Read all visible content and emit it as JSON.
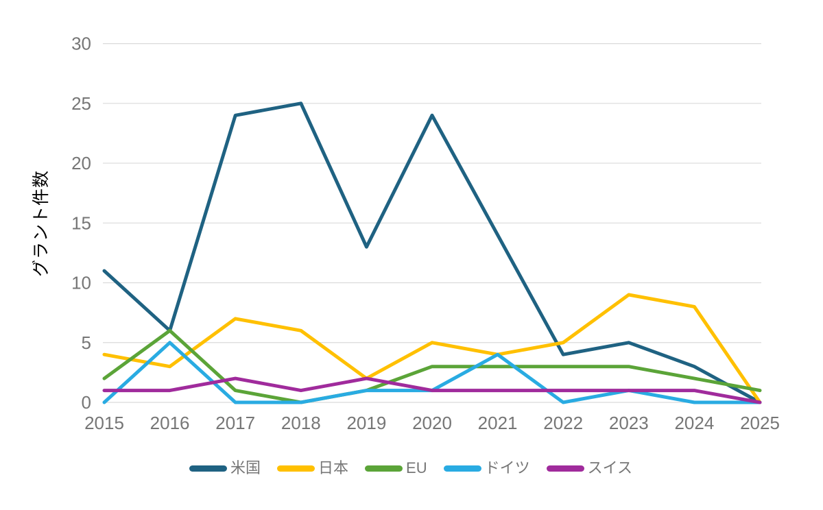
{
  "chart_data": {
    "type": "line",
    "title": "",
    "xlabel": "",
    "ylabel": "グラント件数",
    "categories": [
      "2015",
      "2016",
      "2017",
      "2018",
      "2019",
      "2020",
      "2021",
      "2022",
      "2023",
      "2024",
      "2025"
    ],
    "series": [
      {
        "id": "usa",
        "name": "米国",
        "color": "#1F6282",
        "values": [
          11,
          6,
          24,
          25,
          13,
          24,
          14,
          4,
          5,
          3,
          0
        ]
      },
      {
        "id": "japan",
        "name": "日本",
        "color": "#FFC000",
        "values": [
          4,
          3,
          7,
          6,
          2,
          5,
          4,
          5,
          9,
          8,
          0
        ]
      },
      {
        "id": "eu",
        "name": "EU",
        "color": "#5BA438",
        "values": [
          2,
          6,
          1,
          0,
          1,
          3,
          3,
          3,
          3,
          2,
          1
        ]
      },
      {
        "id": "germany",
        "name": "ドイツ",
        "color": "#29ABE2",
        "values": [
          0,
          5,
          0,
          0,
          1,
          1,
          4,
          0,
          1,
          0,
          0
        ]
      },
      {
        "id": "switzerland",
        "name": "スイス",
        "color": "#A02B9C",
        "values": [
          1,
          1,
          2,
          1,
          2,
          1,
          1,
          1,
          1,
          1,
          0
        ]
      }
    ],
    "ylim": [
      0,
      30
    ],
    "yticks": [
      0,
      5,
      10,
      15,
      20,
      25,
      30
    ],
    "grid": true,
    "legend_position": "bottom"
  },
  "style": {
    "grid_color": "#DADADA",
    "text_color": "#767676",
    "line_width": 5
  }
}
